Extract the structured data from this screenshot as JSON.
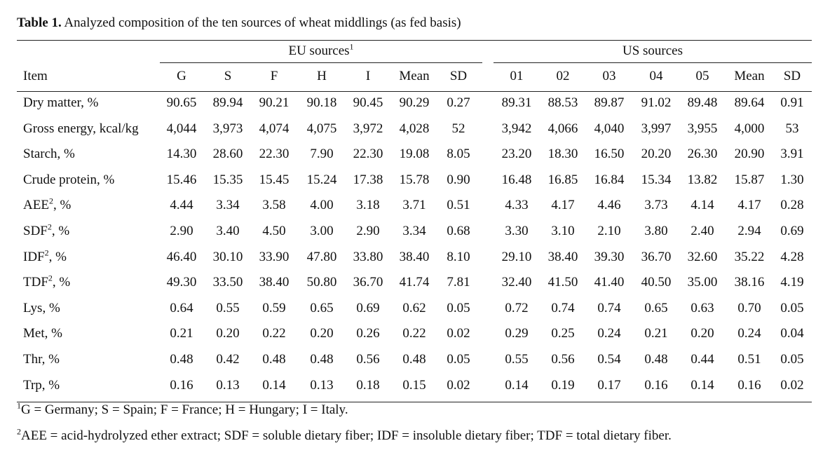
{
  "caption": {
    "label": "Table 1.",
    "text": " Analyzed composition of the ten sources of wheat middlings (as fed basis)"
  },
  "groups": {
    "eu": "EU sources",
    "eu_sup": "1",
    "us": "US sources"
  },
  "columns": [
    "Item",
    "G",
    "S",
    "F",
    "H",
    "I",
    "Mean",
    "SD",
    "01",
    "02",
    "03",
    "04",
    "05",
    "Mean",
    "SD"
  ],
  "rows": [
    {
      "item": "Dry matter, %",
      "sup": "",
      "item_suffix": "",
      "values": [
        "90.65",
        "89.94",
        "90.21",
        "90.18",
        "90.45",
        "90.29",
        "0.27",
        "89.31",
        "88.53",
        "89.87",
        "91.02",
        "89.48",
        "89.64",
        "0.91"
      ]
    },
    {
      "item": "Gross energy, kcal/kg",
      "sup": "",
      "item_suffix": "",
      "values": [
        "4,044",
        "3,973",
        "4,074",
        "4,075",
        "3,972",
        "4,028",
        "52",
        "3,942",
        "4,066",
        "4,040",
        "3,997",
        "3,955",
        "4,000",
        "53"
      ]
    },
    {
      "item": "Starch, %",
      "sup": "",
      "item_suffix": "",
      "values": [
        "14.30",
        "28.60",
        "22.30",
        "7.90",
        "22.30",
        "19.08",
        "8.05",
        "23.20",
        "18.30",
        "16.50",
        "20.20",
        "26.30",
        "20.90",
        "3.91"
      ]
    },
    {
      "item": "Crude protein, %",
      "sup": "",
      "item_suffix": "",
      "values": [
        "15.46",
        "15.35",
        "15.45",
        "15.24",
        "17.38",
        "15.78",
        "0.90",
        "16.48",
        "16.85",
        "16.84",
        "15.34",
        "13.82",
        "15.87",
        "1.30"
      ]
    },
    {
      "item": "AEE",
      "sup": "2",
      "item_suffix": ", %",
      "values": [
        "4.44",
        "3.34",
        "3.58",
        "4.00",
        "3.18",
        "3.71",
        "0.51",
        "4.33",
        "4.17",
        "4.46",
        "3.73",
        "4.14",
        "4.17",
        "0.28"
      ]
    },
    {
      "item": "SDF",
      "sup": "2",
      "item_suffix": ", %",
      "values": [
        "2.90",
        "3.40",
        "4.50",
        "3.00",
        "2.90",
        "3.34",
        "0.68",
        "3.30",
        "3.10",
        "2.10",
        "3.80",
        "2.40",
        "2.94",
        "0.69"
      ]
    },
    {
      "item": "IDF",
      "sup": "2",
      "item_suffix": ", %",
      "values": [
        "46.40",
        "30.10",
        "33.90",
        "47.80",
        "33.80",
        "38.40",
        "8.10",
        "29.10",
        "38.40",
        "39.30",
        "36.70",
        "32.60",
        "35.22",
        "4.28"
      ]
    },
    {
      "item": "TDF",
      "sup": "2",
      "item_suffix": ", %",
      "values": [
        "49.30",
        "33.50",
        "38.40",
        "50.80",
        "36.70",
        "41.74",
        "7.81",
        "32.40",
        "41.50",
        "41.40",
        "40.50",
        "35.00",
        "38.16",
        "4.19"
      ]
    },
    {
      "item": "Lys, %",
      "sup": "",
      "item_suffix": "",
      "values": [
        "0.64",
        "0.55",
        "0.59",
        "0.65",
        "0.69",
        "0.62",
        "0.05",
        "0.72",
        "0.74",
        "0.74",
        "0.65",
        "0.63",
        "0.70",
        "0.05"
      ]
    },
    {
      "item": "Met, %",
      "sup": "",
      "item_suffix": "",
      "values": [
        "0.21",
        "0.20",
        "0.22",
        "0.20",
        "0.26",
        "0.22",
        "0.02",
        "0.29",
        "0.25",
        "0.24",
        "0.21",
        "0.20",
        "0.24",
        "0.04"
      ]
    },
    {
      "item": "Thr, %",
      "sup": "",
      "item_suffix": "",
      "values": [
        "0.48",
        "0.42",
        "0.48",
        "0.48",
        "0.56",
        "0.48",
        "0.05",
        "0.55",
        "0.56",
        "0.54",
        "0.48",
        "0.44",
        "0.51",
        "0.05"
      ]
    },
    {
      "item": "Trp, %",
      "sup": "",
      "item_suffix": "",
      "values": [
        "0.16",
        "0.13",
        "0.14",
        "0.13",
        "0.18",
        "0.15",
        "0.02",
        "0.14",
        "0.19",
        "0.17",
        "0.16",
        "0.14",
        "0.16",
        "0.02"
      ]
    }
  ],
  "footnotes": [
    {
      "sup": "1",
      "text": "G = Germany; S = Spain; F = France; H = Hungary; I = Italy."
    },
    {
      "sup": "2",
      "text": "AEE = acid-hydrolyzed ether extract; SDF = soluble dietary fiber; IDF = insoluble dietary fiber; TDF = total dietary fiber."
    }
  ]
}
